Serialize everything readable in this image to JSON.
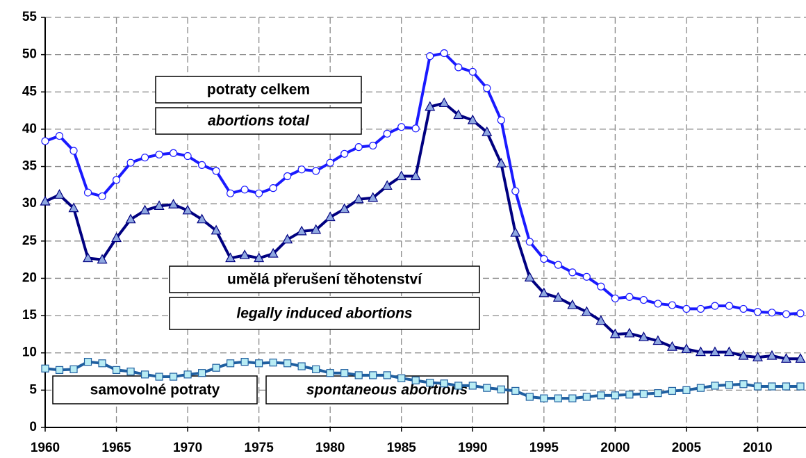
{
  "chart_data": {
    "type": "line",
    "x": [
      1960,
      1961,
      1962,
      1963,
      1964,
      1965,
      1966,
      1967,
      1968,
      1969,
      1970,
      1971,
      1972,
      1973,
      1974,
      1975,
      1976,
      1977,
      1978,
      1979,
      1980,
      1981,
      1982,
      1983,
      1984,
      1985,
      1986,
      1987,
      1988,
      1989,
      1990,
      1991,
      1992,
      1993,
      1994,
      1995,
      1996,
      1997,
      1998,
      1999,
      2000,
      2001,
      2002,
      2003,
      2004,
      2005,
      2006,
      2007,
      2008,
      2009,
      2010,
      2011,
      2012,
      2013
    ],
    "series": [
      {
        "color": "#1a1aff",
        "marker": "circle",
        "marker_color": "#ffffff",
        "values": [
          38.4,
          39.1,
          37.1,
          31.5,
          31.0,
          33.2,
          35.5,
          36.2,
          36.6,
          36.8,
          36.4,
          35.2,
          34.4,
          31.4,
          31.9,
          31.4,
          32.1,
          33.7,
          34.6,
          34.4,
          35.5,
          36.7,
          37.6,
          37.8,
          39.4,
          40.3,
          40.1,
          49.8,
          50.2,
          48.3,
          47.7,
          45.5,
          41.2,
          31.7,
          24.9,
          22.6,
          21.8,
          20.8,
          20.2,
          18.9,
          17.3,
          17.5,
          17.1,
          16.6,
          16.4,
          15.9,
          15.9,
          16.3,
          16.3,
          15.9,
          15.5,
          15.4,
          15.2,
          15.3
        ]
      },
      {
        "color": "#000080",
        "marker": "triangle",
        "marker_color": "#8fa8e0",
        "values": [
          30.3,
          31.2,
          29.4,
          22.7,
          22.5,
          25.4,
          27.9,
          29.1,
          29.7,
          29.9,
          29.1,
          27.9,
          26.4,
          22.7,
          23.1,
          22.7,
          23.3,
          25.2,
          26.3,
          26.5,
          28.2,
          29.3,
          30.6,
          30.8,
          32.4,
          33.7,
          33.7,
          43.0,
          43.5,
          41.9,
          41.2,
          39.6,
          35.4,
          26.1,
          20.1,
          18.0,
          17.4,
          16.4,
          15.5,
          14.3,
          12.5,
          12.6,
          12.1,
          11.6,
          10.8,
          10.5,
          10.1,
          10.1,
          10.1,
          9.6,
          9.4,
          9.6,
          9.2,
          9.2
        ]
      },
      {
        "color": "#1f5fa0",
        "marker": "square",
        "marker_color": "#b8ecf4",
        "values": [
          7.9,
          7.7,
          7.8,
          8.8,
          8.6,
          7.7,
          7.5,
          7.1,
          6.8,
          6.8,
          7.1,
          7.3,
          8.0,
          8.6,
          8.8,
          8.6,
          8.7,
          8.6,
          8.2,
          7.8,
          7.3,
          7.3,
          7.0,
          7.0,
          7.0,
          6.6,
          6.3,
          6.0,
          5.9,
          5.6,
          5.6,
          5.3,
          5.1,
          4.9,
          4.1,
          3.9,
          3.9,
          3.9,
          4.1,
          4.3,
          4.3,
          4.4,
          4.5,
          4.6,
          4.9,
          5.0,
          5.3,
          5.6,
          5.7,
          5.8,
          5.5,
          5.5,
          5.5,
          5.5
        ]
      }
    ],
    "annotations": [
      {
        "text": "potraty celkem",
        "style": "normal"
      },
      {
        "text": "abortions total",
        "style": "italic"
      },
      {
        "text": "umělá přerušení těhotenství",
        "style": "normal"
      },
      {
        "text": "legally induced abortions",
        "style": "italic"
      },
      {
        "text": "samovolné potraty",
        "style": "normal"
      },
      {
        "text": "spontaneous abortions",
        "style": "italic"
      }
    ],
    "xlim": [
      1960,
      2013
    ],
    "ylim": [
      0,
      55
    ],
    "xticks": [
      1960,
      1965,
      1970,
      1975,
      1980,
      1985,
      1990,
      1995,
      2000,
      2005,
      2010
    ],
    "yticks": [
      0,
      5,
      10,
      15,
      20,
      25,
      30,
      35,
      40,
      45,
      50,
      55
    ],
    "grid": true
  }
}
